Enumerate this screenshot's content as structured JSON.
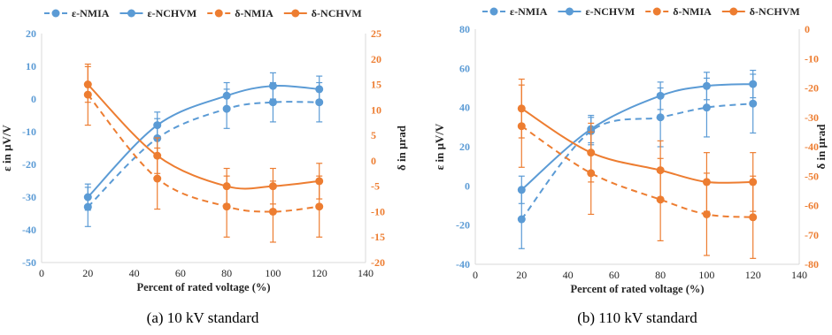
{
  "colors": {
    "blue": "#5b9bd5",
    "orange": "#ed7d31",
    "axis": "#d9d9d9",
    "text": "#262626"
  },
  "chart_data": [
    {
      "type": "line",
      "caption": "(a) 10 kV standard",
      "xlabel": "Percent of  rated voltage (%)",
      "ylabel": "ε in μV/V",
      "y2label": "δ in μrad",
      "xlim": [
        0,
        140
      ],
      "xticks": [
        0,
        20,
        40,
        60,
        80,
        100,
        120,
        140
      ],
      "ylim": [
        -50,
        20
      ],
      "yticks": [
        -50,
        -40,
        -30,
        -20,
        -10,
        0,
        10,
        20
      ],
      "y2lim": [
        -20,
        25
      ],
      "y2ticks": [
        -20,
        -15,
        -10,
        -5,
        0,
        5,
        10,
        15,
        20,
        25
      ],
      "legend_position": "top",
      "series": [
        {
          "name": "ε-NMIA",
          "axis": "left",
          "dashed": true,
          "color": "blue",
          "x": [
            20,
            50,
            80,
            100,
            120
          ],
          "y": [
            -33,
            -12,
            -3,
            -1,
            -1
          ],
          "err": [
            6,
            6,
            6,
            6,
            6
          ]
        },
        {
          "name": "ε-NCHVM",
          "axis": "left",
          "dashed": false,
          "color": "blue",
          "x": [
            20,
            50,
            80,
            100,
            120
          ],
          "y": [
            -30,
            -8,
            1,
            4,
            3
          ],
          "err": [
            4,
            4,
            4,
            4,
            4
          ]
        },
        {
          "name": "δ-NMIA",
          "axis": "right",
          "dashed": true,
          "color": "orange",
          "x": [
            20,
            50,
            80,
            100,
            120
          ],
          "y": [
            13,
            -3.5,
            -9,
            -10,
            -9
          ],
          "err": [
            6,
            6,
            6,
            6,
            6
          ]
        },
        {
          "name": "δ-NCHVM",
          "axis": "right",
          "dashed": false,
          "color": "orange",
          "x": [
            20,
            50,
            80,
            100,
            120
          ],
          "y": [
            15,
            1,
            -5,
            -5,
            -4
          ],
          "err": [
            3.5,
            3.5,
            3.5,
            3.5,
            3.5
          ]
        }
      ]
    },
    {
      "type": "line",
      "caption": "(b) 110 kV standard",
      "xlabel": "Percent of  rated voltage (%)",
      "ylabel": "ε in μV/V",
      "y2label": "δ in μrad",
      "xlim": [
        0,
        140
      ],
      "xticks": [
        0,
        20,
        40,
        60,
        80,
        100,
        120,
        140
      ],
      "ylim": [
        -40,
        80
      ],
      "yticks": [
        -40,
        -20,
        0,
        20,
        40,
        60,
        80
      ],
      "y2lim": [
        -80,
        0
      ],
      "y2ticks": [
        -80,
        -70,
        -60,
        -50,
        -40,
        -30,
        -20,
        -10,
        0
      ],
      "legend_position": "top",
      "series": [
        {
          "name": "ε-NMIA",
          "axis": "left",
          "dashed": true,
          "color": "blue",
          "x": [
            20,
            50,
            80,
            100,
            120
          ],
          "y": [
            -17,
            28,
            35,
            40,
            42
          ],
          "err": [
            15,
            7,
            15,
            15,
            15
          ]
        },
        {
          "name": "ε-NCHVM",
          "axis": "left",
          "dashed": false,
          "color": "blue",
          "x": [
            20,
            50,
            80,
            100,
            120
          ],
          "y": [
            -2,
            29,
            46,
            51,
            52
          ],
          "err": [
            7,
            7,
            7,
            7,
            7
          ]
        },
        {
          "name": "δ-NMIA",
          "axis": "right",
          "dashed": true,
          "color": "orange",
          "x": [
            20,
            50,
            80,
            100,
            120
          ],
          "y": [
            -33,
            -49,
            -58,
            -63,
            -64
          ],
          "err": [
            14,
            14,
            14,
            14,
            14
          ]
        },
        {
          "name": "δ-NCHVM",
          "axis": "right",
          "dashed": false,
          "color": "orange",
          "x": [
            20,
            50,
            80,
            100,
            120
          ],
          "y": [
            -27,
            -42,
            -48,
            -52,
            -52
          ],
          "err": [
            10,
            10,
            10,
            10,
            10
          ]
        }
      ]
    }
  ]
}
